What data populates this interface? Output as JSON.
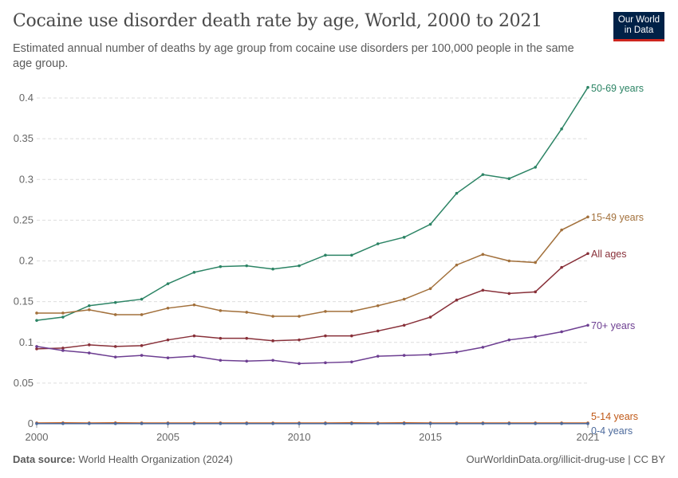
{
  "header": {
    "title": "Cocaine use disorder death rate by age, World, 2000 to 2021",
    "subtitle": "Estimated annual number of deaths by age group from cocaine use disorders per 100,000 people in the same age group.",
    "logo_text": "Our World in Data"
  },
  "footer": {
    "source_label": "Data source:",
    "source_value": "World Health Organization (2024)",
    "right": "OurWorldinData.org/illicit-drug-use | CC BY"
  },
  "chart_data": {
    "type": "line",
    "x": [
      2000,
      2001,
      2002,
      2003,
      2004,
      2005,
      2006,
      2007,
      2008,
      2009,
      2010,
      2011,
      2012,
      2013,
      2014,
      2015,
      2016,
      2017,
      2018,
      2019,
      2020,
      2021
    ],
    "xlim": [
      2000,
      2021
    ],
    "ylim": [
      0,
      0.4
    ],
    "x_ticks": [
      "2000",
      "2005",
      "2010",
      "2015",
      "2021"
    ],
    "x_tick_values": [
      2000,
      2005,
      2010,
      2015,
      2021
    ],
    "y_ticks": [
      "0",
      "0.05",
      "0.1",
      "0.15",
      "0.2",
      "0.25",
      "0.3",
      "0.35",
      "0.4"
    ],
    "y_tick_values": [
      0,
      0.05,
      0.1,
      0.15,
      0.2,
      0.25,
      0.3,
      0.35,
      0.4
    ],
    "grid": "horizontal dashed",
    "legend": "line-end labels right",
    "series": [
      {
        "name": "50-69 years",
        "color": "#2c8465",
        "values": [
          0.127,
          0.131,
          0.145,
          0.149,
          0.153,
          0.172,
          0.186,
          0.193,
          0.194,
          0.19,
          0.194,
          0.207,
          0.207,
          0.221,
          0.229,
          0.245,
          0.283,
          0.306,
          0.301,
          0.315,
          0.362,
          0.413
        ]
      },
      {
        "name": "15-49 years",
        "color": "#a2703b",
        "values": [
          0.136,
          0.136,
          0.14,
          0.134,
          0.134,
          0.142,
          0.146,
          0.139,
          0.137,
          0.132,
          0.132,
          0.138,
          0.138,
          0.145,
          0.153,
          0.166,
          0.195,
          0.208,
          0.2,
          0.198,
          0.238,
          0.254
        ]
      },
      {
        "name": "All ages",
        "color": "#883039",
        "values": [
          0.092,
          0.093,
          0.097,
          0.095,
          0.096,
          0.103,
          0.108,
          0.105,
          0.105,
          0.102,
          0.103,
          0.108,
          0.108,
          0.114,
          0.121,
          0.131,
          0.152,
          0.164,
          0.16,
          0.162,
          0.192,
          0.209
        ]
      },
      {
        "name": "70+ years",
        "color": "#6d3e91",
        "values": [
          0.095,
          0.09,
          0.087,
          0.082,
          0.084,
          0.081,
          0.083,
          0.078,
          0.077,
          0.078,
          0.074,
          0.075,
          0.076,
          0.083,
          0.084,
          0.085,
          0.088,
          0.094,
          0.103,
          0.107,
          0.113,
          0.121
        ]
      },
      {
        "name": "5-14 years",
        "color": "#c05917",
        "values": [
          0.001,
          0.0012,
          0.001,
          0.0012,
          0.001,
          0.001,
          0.001,
          0.001,
          0.001,
          0.001,
          0.001,
          0.001,
          0.0012,
          0.001,
          0.0012,
          0.001,
          0.001,
          0.001,
          0.001,
          0.001,
          0.001,
          0.001
        ]
      },
      {
        "name": "0-4 years",
        "color": "#4c6a9c",
        "values": [
          0.0003,
          0.0003,
          0.0003,
          0.0003,
          0.0003,
          0.0003,
          0.0003,
          0.0003,
          0.0003,
          0.0003,
          0.0003,
          0.0003,
          0.0003,
          0.0003,
          0.0003,
          0.0003,
          0.0003,
          0.0003,
          0.0003,
          0.0003,
          0.0003,
          0.0003
        ]
      }
    ]
  }
}
